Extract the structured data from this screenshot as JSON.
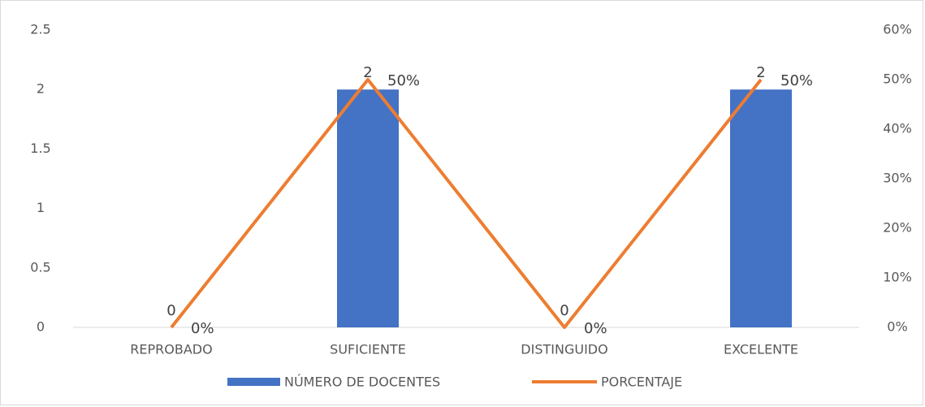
{
  "chart_data": {
    "type": "bar_line",
    "categories": [
      "REPROBADO",
      "SUFICIENTE",
      "DISTINGUIDO",
      "EXCELENTE"
    ],
    "series": [
      {
        "name": "NÚMERO DE DOCENTES",
        "type": "bar",
        "color": "#4472c4",
        "values": [
          0,
          2,
          0,
          2
        ]
      },
      {
        "name": "PORCENTAJE",
        "type": "line",
        "axis": "y2",
        "color": "#ed7d31",
        "values": [
          0,
          50,
          0,
          50
        ],
        "value_labels": [
          "0%",
          "50%",
          "0%",
          "50%"
        ]
      }
    ],
    "ylim": [
      0,
      2.5
    ],
    "yticks": [
      0,
      0.5,
      1,
      1.5,
      2,
      2.5
    ],
    "y2lim": [
      0,
      60
    ],
    "y2ticks": [
      {
        "value": 0,
        "label": "0%"
      },
      {
        "value": 10,
        "label": "10%"
      },
      {
        "value": 20,
        "label": "20%"
      },
      {
        "value": 30,
        "label": "30%"
      },
      {
        "value": 40,
        "label": "40%"
      },
      {
        "value": 50,
        "label": "50%"
      },
      {
        "value": 60,
        "label": "60%"
      }
    ],
    "legend": "bottom"
  }
}
